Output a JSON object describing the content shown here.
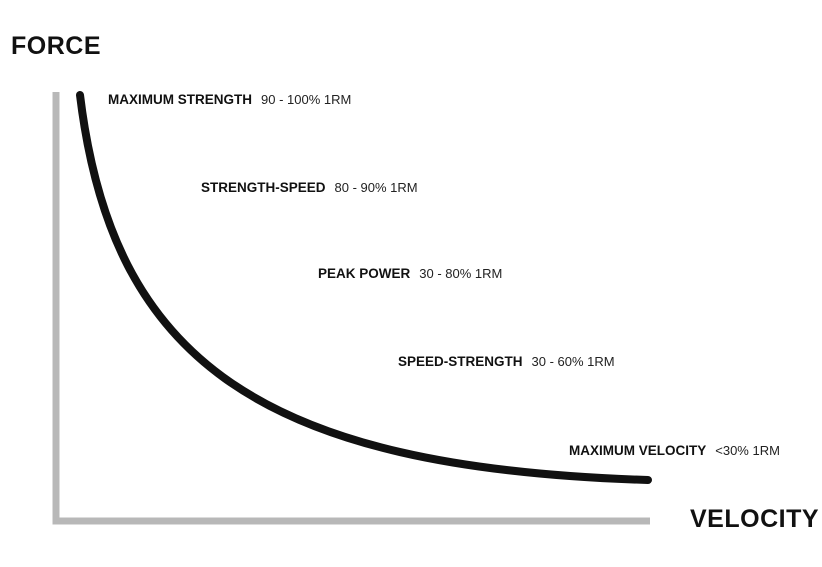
{
  "axes": {
    "y_label": "FORCE",
    "x_label": "VELOCITY",
    "axis_color": "#b8b8b8",
    "curve_color": "#111111"
  },
  "zones": [
    {
      "name": "MAXIMUM STRENGTH",
      "range": "90 - 100% 1RM"
    },
    {
      "name": "STRENGTH-SPEED",
      "range": "80 - 90% 1RM"
    },
    {
      "name": "PEAK POWER",
      "range": "30 - 80% 1RM"
    },
    {
      "name": "SPEED-STRENGTH",
      "range": "30 - 60% 1RM"
    },
    {
      "name": "MAXIMUM VELOCITY",
      "range": "<30% 1RM"
    }
  ]
}
